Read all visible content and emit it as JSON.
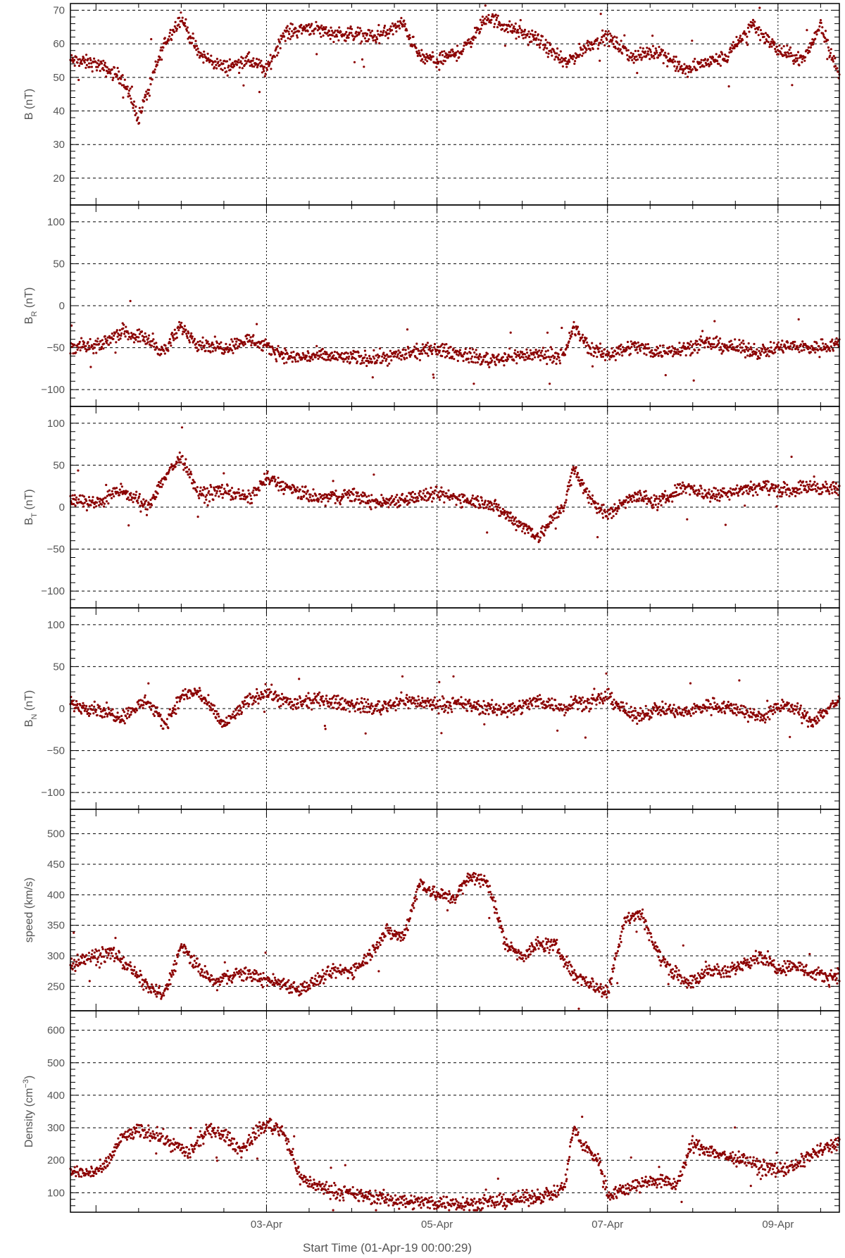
{
  "colors": {
    "points": "#8b0000",
    "axis": "#000000",
    "text": "#555555",
    "grid": "#000000"
  },
  "x_axis": {
    "title": "Start Time (01-Apr-19 00:00:29)",
    "range_days": [
      0.7,
      9.72
    ],
    "major_ticks": [
      {
        "day": 3,
        "label": "03-Apr"
      },
      {
        "day": 5,
        "label": "05-Apr"
      },
      {
        "day": 7,
        "label": "07-Apr"
      },
      {
        "day": 9,
        "label": "09-Apr"
      }
    ],
    "minor_tick_step_days": 0.5
  },
  "chart_data": [
    {
      "type": "scatter",
      "key": "B",
      "ylabel": "B (nT)",
      "ylabel_main": "B",
      "ylabel_sub": "",
      "ylabel_sup": "",
      "ylabel_unit": "(nT)",
      "ylim": [
        12,
        72
      ],
      "yticks": [
        20,
        30,
        40,
        50,
        60,
        70
      ],
      "grid": true,
      "series": [
        {
          "x": [
            0.7,
            1.0,
            1.3,
            1.5,
            1.8,
            2.0,
            2.2,
            2.5,
            2.8,
            3.0,
            3.2,
            3.5,
            3.8,
            4.0,
            4.3,
            4.6,
            4.8,
            5.0,
            5.3,
            5.6,
            5.9,
            6.2,
            6.5,
            6.8,
            7.0,
            7.3,
            7.6,
            7.9,
            8.1,
            8.4,
            8.7,
            9.0,
            9.3,
            9.5,
            9.72
          ],
          "y": [
            55,
            54,
            50,
            38,
            60,
            68,
            57,
            53,
            55,
            52,
            63,
            65,
            63,
            63,
            62,
            66,
            56,
            55,
            58,
            68,
            64,
            61,
            54,
            60,
            62,
            56,
            58,
            52,
            54,
            56,
            66,
            58,
            55,
            66,
            50
          ]
        }
      ]
    },
    {
      "type": "scatter",
      "key": "BR",
      "ylabel": "BR (nT)",
      "ylabel_main": "B",
      "ylabel_sub": "R",
      "ylabel_sup": "",
      "ylabel_unit": "(nT)",
      "ylim": [
        -120,
        120
      ],
      "yticks": [
        -100,
        -50,
        0,
        50,
        100
      ],
      "grid": true,
      "series": [
        {
          "x": [
            0.7,
            1.0,
            1.3,
            1.6,
            1.8,
            2.0,
            2.2,
            2.5,
            2.8,
            3.0,
            3.3,
            3.6,
            4.0,
            4.3,
            4.6,
            5.0,
            5.3,
            5.6,
            5.9,
            6.2,
            6.5,
            6.6,
            6.8,
            7.0,
            7.3,
            7.6,
            7.9,
            8.2,
            8.5,
            8.8,
            9.1,
            9.4,
            9.72
          ],
          "y": [
            -48,
            -50,
            -30,
            -40,
            -55,
            -25,
            -45,
            -50,
            -40,
            -50,
            -62,
            -60,
            -62,
            -63,
            -58,
            -52,
            -58,
            -65,
            -60,
            -58,
            -60,
            -25,
            -52,
            -58,
            -48,
            -55,
            -50,
            -45,
            -50,
            -55,
            -48,
            -50,
            -45
          ]
        }
      ]
    },
    {
      "type": "scatter",
      "key": "BT",
      "ylabel": "BT (nT)",
      "ylabel_main": "B",
      "ylabel_sub": "T",
      "ylabel_sup": "",
      "ylabel_unit": "(nT)",
      "ylim": [
        -120,
        120
      ],
      "yticks": [
        -100,
        -50,
        0,
        50,
        100
      ],
      "grid": true,
      "series": [
        {
          "x": [
            0.7,
            1.0,
            1.3,
            1.6,
            1.8,
            2.0,
            2.2,
            2.5,
            2.8,
            3.0,
            3.3,
            3.6,
            4.0,
            4.3,
            4.6,
            5.0,
            5.3,
            5.6,
            5.9,
            6.2,
            6.5,
            6.6,
            6.8,
            7.0,
            7.3,
            7.6,
            7.9,
            8.2,
            8.5,
            8.8,
            9.1,
            9.4,
            9.72
          ],
          "y": [
            10,
            5,
            20,
            0,
            35,
            60,
            15,
            20,
            10,
            35,
            20,
            10,
            15,
            5,
            10,
            15,
            10,
            5,
            -15,
            -35,
            5,
            45,
            10,
            -10,
            15,
            5,
            25,
            15,
            20,
            25,
            20,
            25,
            20
          ]
        }
      ]
    },
    {
      "type": "scatter",
      "key": "BN",
      "ylabel": "BN (nT)",
      "ylabel_main": "B",
      "ylabel_sub": "N",
      "ylabel_sup": "",
      "ylabel_unit": "(nT)",
      "ylim": [
        -120,
        120
      ],
      "yticks": [
        -100,
        -50,
        0,
        50,
        100
      ],
      "grid": true,
      "series": [
        {
          "x": [
            0.7,
            1.0,
            1.3,
            1.6,
            1.8,
            2.0,
            2.2,
            2.5,
            2.8,
            3.0,
            3.3,
            3.6,
            4.0,
            4.3,
            4.6,
            5.0,
            5.3,
            5.6,
            5.9,
            6.2,
            6.5,
            6.6,
            6.8,
            7.0,
            7.3,
            7.6,
            7.9,
            8.2,
            8.5,
            8.8,
            9.1,
            9.4,
            9.72
          ],
          "y": [
            5,
            0,
            -10,
            10,
            -20,
            15,
            20,
            -20,
            10,
            20,
            5,
            10,
            5,
            0,
            10,
            5,
            5,
            0,
            0,
            10,
            0,
            10,
            5,
            15,
            -10,
            0,
            -5,
            5,
            0,
            -10,
            5,
            -15,
            10
          ]
        }
      ]
    },
    {
      "type": "scatter",
      "key": "speed",
      "ylabel": "speed (km/s)",
      "ylabel_main": "speed",
      "ylabel_sub": "",
      "ylabel_sup": "",
      "ylabel_unit": "(km/s)",
      "ylim": [
        210,
        540
      ],
      "yticks": [
        250,
        300,
        350,
        400,
        450,
        500
      ],
      "grid": true,
      "series": [
        {
          "x": [
            0.7,
            1.0,
            1.2,
            1.4,
            1.6,
            1.8,
            2.0,
            2.2,
            2.4,
            2.6,
            2.8,
            3.0,
            3.2,
            3.4,
            3.6,
            3.8,
            4.0,
            4.2,
            4.4,
            4.6,
            4.8,
            5.0,
            5.2,
            5.4,
            5.6,
            5.8,
            6.0,
            6.2,
            6.4,
            6.6,
            6.8,
            7.0,
            7.2,
            7.4,
            7.6,
            7.8,
            8.0,
            8.2,
            8.4,
            8.6,
            8.8,
            9.0,
            9.2,
            9.4,
            9.6,
            9.72
          ],
          "y": [
            285,
            300,
            305,
            280,
            250,
            235,
            315,
            280,
            255,
            270,
            270,
            260,
            255,
            245,
            260,
            275,
            275,
            300,
            340,
            330,
            420,
            400,
            395,
            430,
            420,
            320,
            300,
            320,
            315,
            270,
            255,
            240,
            360,
            370,
            300,
            270,
            255,
            280,
            270,
            290,
            300,
            280,
            285,
            270,
            265,
            270
          ]
        }
      ]
    },
    {
      "type": "scatter",
      "key": "density",
      "ylabel": "Density (cm-3)",
      "ylabel_main": "Density",
      "ylabel_sub": "",
      "ylabel_sup": "−3",
      "ylabel_unit": "(cm",
      "ylim": [
        40,
        660
      ],
      "yticks": [
        100,
        200,
        300,
        400,
        500,
        600
      ],
      "grid": true,
      "series": [
        {
          "x": [
            0.7,
            0.9,
            1.1,
            1.3,
            1.5,
            1.7,
            1.9,
            2.1,
            2.3,
            2.5,
            2.7,
            2.9,
            3.0,
            3.2,
            3.4,
            3.6,
            3.8,
            4.0,
            4.3,
            4.6,
            4.9,
            5.2,
            5.5,
            5.8,
            6.1,
            6.4,
            6.5,
            6.6,
            6.7,
            6.9,
            7.0,
            7.2,
            7.4,
            7.6,
            7.8,
            8.0,
            8.2,
            8.4,
            8.6,
            8.8,
            9.0,
            9.2,
            9.4,
            9.6,
            9.72
          ],
          "y": [
            165,
            160,
            175,
            270,
            290,
            280,
            250,
            220,
            290,
            280,
            230,
            290,
            310,
            290,
            145,
            120,
            105,
            95,
            85,
            75,
            70,
            70,
            65,
            75,
            85,
            100,
            120,
            300,
            250,
            200,
            95,
            110,
            130,
            140,
            120,
            250,
            230,
            210,
            200,
            180,
            170,
            180,
            220,
            240,
            260
          ]
        }
      ]
    }
  ]
}
